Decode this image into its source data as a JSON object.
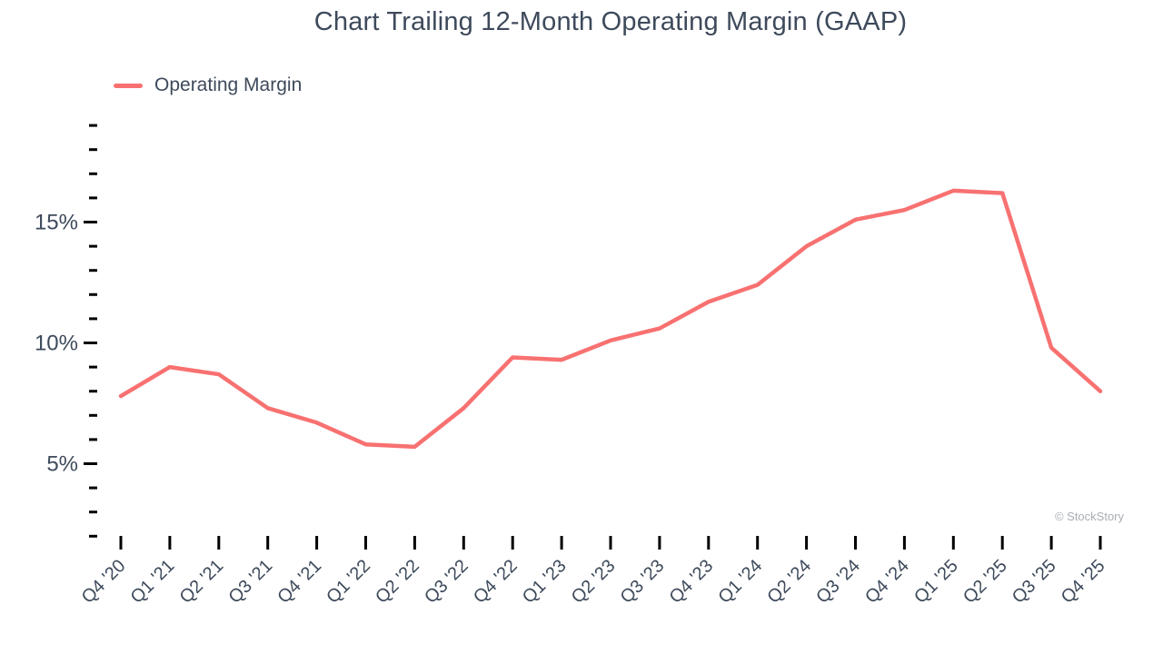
{
  "chart_data": {
    "type": "line",
    "title": "Chart Trailing 12-Month Operating Margin (GAAP)",
    "legend_label": "Operating Margin",
    "legend_position": "top-left",
    "grid": false,
    "unit": "%",
    "line_color": "#f87171",
    "categories": [
      "Q4 '20",
      "Q1 '21",
      "Q2 '21",
      "Q3 '21",
      "Q4 '21",
      "Q1 '22",
      "Q2 '22",
      "Q3 '22",
      "Q4 '22",
      "Q1 '23",
      "Q2 '23",
      "Q3 '23",
      "Q4 '23",
      "Q1 '24",
      "Q2 '24",
      "Q3 '24",
      "Q4 '24",
      "Q1 '25",
      "Q2 '25",
      "Q3 '25",
      "Q4 '25"
    ],
    "series": [
      {
        "name": "Operating Margin",
        "values": [
          7.8,
          9.0,
          8.7,
          7.3,
          6.7,
          5.8,
          5.7,
          7.3,
          9.4,
          9.3,
          10.1,
          10.6,
          11.7,
          12.4,
          14.0,
          15.1,
          15.5,
          16.3,
          16.2,
          9.8,
          8.0
        ]
      }
    ],
    "xlabel": "",
    "ylabel": "",
    "y_axis": {
      "min": 2,
      "max": 19,
      "minor_step": 1,
      "major_ticks": [
        5,
        10,
        15
      ],
      "major_tick_labels": [
        "5%",
        "10%",
        "15%"
      ]
    }
  },
  "footer": {
    "credit": "© StockStory"
  },
  "colors": {
    "accent": "#f87171",
    "text": "#3e4a5b",
    "tick": "#000000",
    "muted": "#a9aeb5"
  }
}
